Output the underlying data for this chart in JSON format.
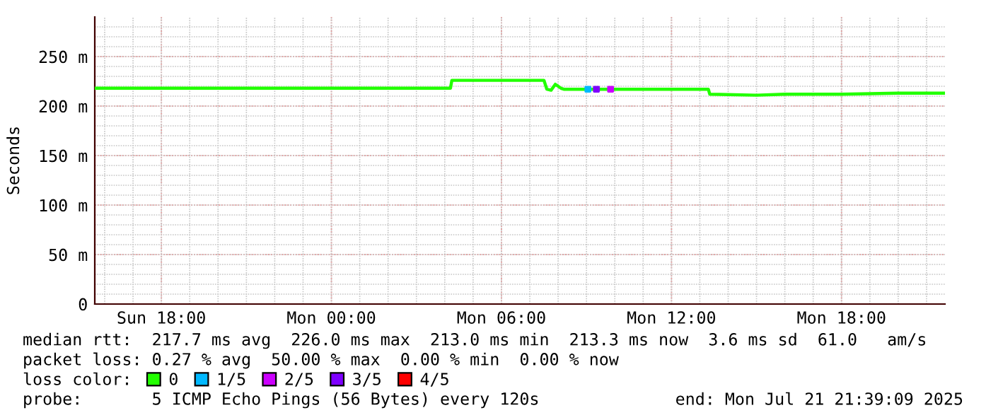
{
  "chart_data": {
    "type": "line",
    "ylabel": "Seconds",
    "xlim": [
      "2025-07-20T15:39",
      "2025-07-21T21:39"
    ],
    "xticks": [
      {
        "value": "2025-07-20T18:00",
        "label": "Sun 18:00"
      },
      {
        "value": "2025-07-21T00:00",
        "label": "Mon 00:00"
      },
      {
        "value": "2025-07-21T06:00",
        "label": "Mon 06:00"
      },
      {
        "value": "2025-07-21T12:00",
        "label": "Mon 12:00"
      },
      {
        "value": "2025-07-21T18:00",
        "label": "Mon 18:00"
      }
    ],
    "ylim": [
      0,
      290
    ],
    "yticks": [
      0,
      {
        "value": 50,
        "label": "50 m"
      },
      {
        "value": 100,
        "label": "100 m"
      },
      {
        "value": 150,
        "label": "150 m"
      },
      {
        "value": 200,
        "label": "200 m"
      },
      {
        "value": 250,
        "label": "250 m"
      }
    ],
    "grid": true,
    "legend": "bottom",
    "legend_title": "loss color:",
    "series": [
      {
        "name": "0",
        "color": "#22ff00",
        "line_style": "solid",
        "x": [
          "2025-07-20T15:42",
          "2025-07-21T04:12",
          "2025-07-21T04:15",
          "2025-07-21T07:30",
          "2025-07-21T07:36",
          "2025-07-21T07:45",
          "2025-07-21T07:54",
          "2025-07-21T08:06",
          "2025-07-21T08:12",
          "2025-07-21T13:18",
          "2025-07-21T13:21",
          "2025-07-21T15:00",
          "2025-07-21T16:00",
          "2025-07-21T18:00",
          "2025-07-21T20:00",
          "2025-07-21T21:36"
        ],
        "values": [
          218,
          218,
          226,
          226,
          217,
          216,
          222,
          218,
          217,
          217,
          212,
          211,
          212,
          212,
          213,
          213
        ]
      },
      {
        "name": "1/5",
        "color": "#00b8ff",
        "type": "scatter",
        "marker": "square",
        "x": [
          "2025-07-21T09:03"
        ],
        "values": [
          217
        ]
      },
      {
        "name": "2/5",
        "color": "#cc00ff",
        "type": "scatter",
        "marker": "square",
        "x": [
          "2025-07-21T09:51"
        ],
        "values": [
          217
        ]
      },
      {
        "name": "3/5",
        "color": "#7e00ff",
        "type": "scatter",
        "marker": "square",
        "x": [
          "2025-07-21T09:21"
        ],
        "values": [
          217
        ]
      },
      {
        "name": "4/5",
        "color": "#ff0000",
        "type": "scatter"
      }
    ],
    "annotations": [
      "median rtt:  217.7 ms avg  226.0 ms max  213.0 ms min  213.3 ms now  3.6 ms sd  61.0   am/s",
      "packet loss: 0.27 % avg  50.00 % max  0.00 % min  0.00 % now",
      "probe:       5 ICMP Echo Pings (56 Bytes) every 120s",
      "end: Mon Jul 21 21:39:09 2025"
    ]
  }
}
